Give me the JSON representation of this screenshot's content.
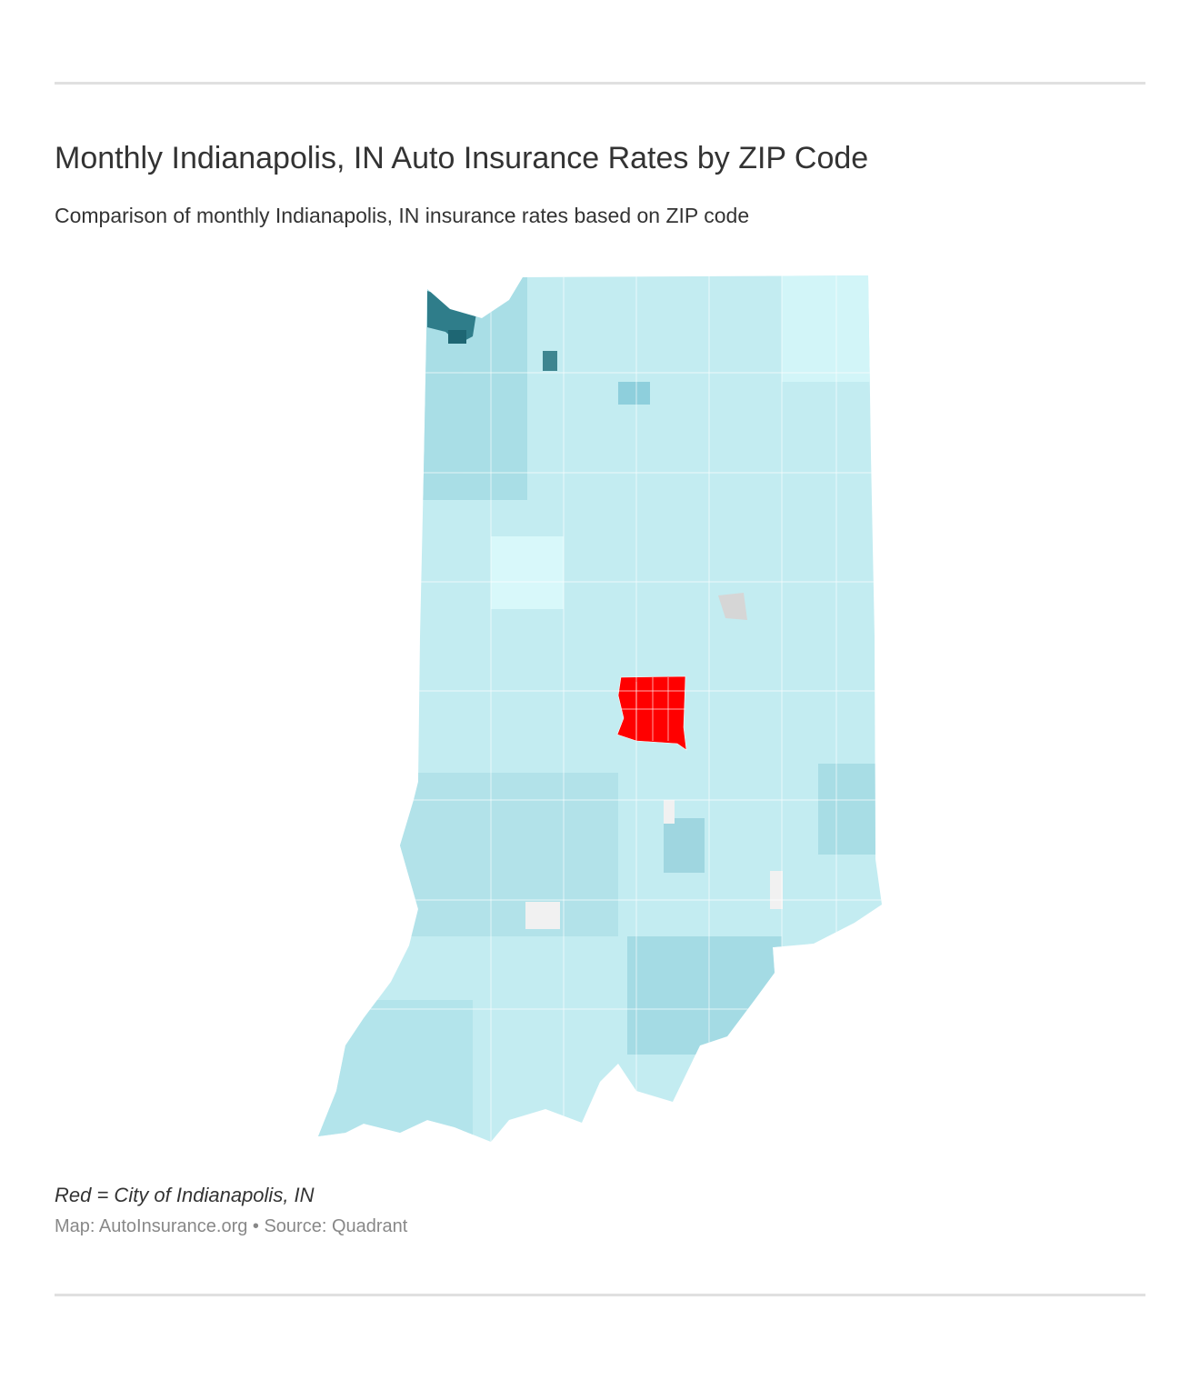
{
  "header": {
    "title": "Monthly Indianapolis, IN Auto Insurance Rates by ZIP Code",
    "subtitle": "Comparison of monthly Indianapolis, IN insurance rates based on ZIP code"
  },
  "footer": {
    "note": "Red = City of Indianapolis, IN",
    "source": "Map: AutoInsurance.org • Source: Quadrant"
  }
}
